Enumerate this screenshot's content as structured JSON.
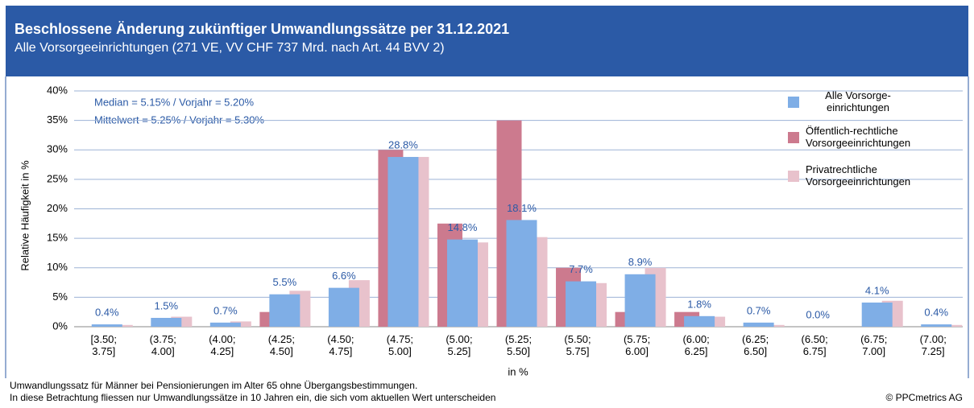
{
  "chart_data": {
    "type": "bar",
    "title": "Beschlossene Änderung zukünftiger Umwandlungssätze per 31.12.2021",
    "subtitle": "Alle Vorsorgeeinrichtungen (271 VE, VV CHF 737 Mrd. nach Art. 44 BVV 2)",
    "x_label": "in %",
    "y_label": "Relative Häufigkeit in %",
    "annotations": [
      "Median = 5.15% / Vorjahr = 5.20%",
      "Mittelwert = 5.25% / Vorjahr = 5.30%"
    ],
    "footnotes": [
      "Umwandlungssatz für Männer bei Pensionierungen im Alter 65 ohne Übergangsbestimmungen.",
      "In diese Betrachtung fliessen nur Umwandlungssätze in 10 Jahren ein, die sich vom aktuellen Wert unterscheiden"
    ],
    "copyright": "© PPCmetrics AG",
    "categories": [
      "[3.50;\n3.75]",
      "(3.75;\n4.00]",
      "(4.00;\n4.25]",
      "(4.25;\n4.50]",
      "(4.50;\n4.75]",
      "(4.75;\n5.00]",
      "(5.00;\n5.25]",
      "(5.25;\n5.50]",
      "(5.50;\n5.75]",
      "(5.75;\n6.00]",
      "(6.00;\n6.25]",
      "(6.25;\n6.50]",
      "(6.50;\n6.75]",
      "(6.75;\n7.00]",
      "(7.00;\n7.25]"
    ],
    "series": [
      {
        "name": "Öffentlich-rechtliche\nVorsorgeeinrichtungen",
        "color": "#cc7a8e",
        "values": [
          0,
          0,
          0,
          2.5,
          0,
          30,
          17.5,
          35,
          10,
          2.5,
          2.5,
          0,
          0,
          0,
          0
        ]
      },
      {
        "name": "Privatrechtliche\nVorsorgeeinrichtungen",
        "color": "#e8c2cc",
        "values": [
          0.3,
          1.7,
          0.9,
          6.1,
          7.9,
          28.8,
          14.3,
          15.2,
          7.4,
          10,
          1.7,
          0.3,
          0,
          4.4,
          0.3
        ]
      },
      {
        "name": "Alle Vorsorge-\neinrichtungen",
        "color": "#7faee6",
        "values": [
          0.4,
          1.5,
          0.7,
          5.5,
          6.6,
          28.8,
          14.8,
          18.1,
          7.7,
          8.9,
          1.8,
          0.7,
          0.0,
          4.1,
          0.4
        ],
        "value_labels": [
          "0.4%",
          "1.5%",
          "0.7%",
          "5.5%",
          "6.6%",
          "28.8%",
          "14.8%",
          "18.1%",
          "7.7%",
          "8.9%",
          "1.8%",
          "0.7%",
          "0.0%",
          "4.1%",
          "0.4%"
        ]
      }
    ],
    "ylim": [
      0,
      40
    ],
    "yticks": [
      {
        "value": 0,
        "label": "0%"
      },
      {
        "value": 5,
        "label": "5%"
      },
      {
        "value": 10,
        "label": "10%"
      },
      {
        "value": 15,
        "label": "15%"
      },
      {
        "value": 20,
        "label": "20%"
      },
      {
        "value": 25,
        "label": "25%"
      },
      {
        "value": 30,
        "label": "30%"
      },
      {
        "value": 35,
        "label": "35%"
      },
      {
        "value": 40,
        "label": "40%"
      }
    ],
    "grid": true
  }
}
